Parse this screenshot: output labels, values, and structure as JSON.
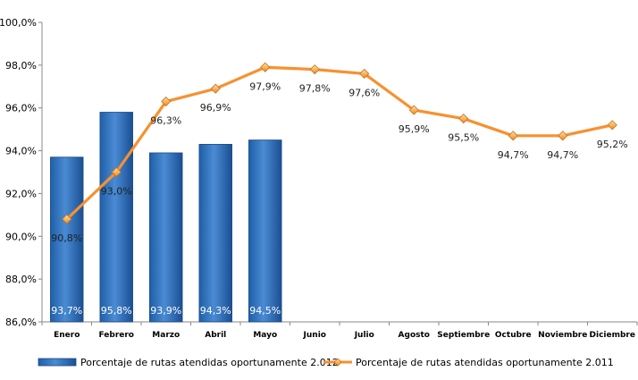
{
  "chart_data": {
    "type": "bar+line",
    "title": "",
    "xlabel": "",
    "ylabel": "",
    "ylim": [
      86.0,
      100.0
    ],
    "ytick_step": 2.0,
    "ytick_labels": [
      "86,0%",
      "88,0%",
      "90,0%",
      "92,0%",
      "94,0%",
      "96,0%",
      "98,0%",
      "100,0%"
    ],
    "categories": [
      "Enero",
      "Febrero",
      "Marzo",
      "Abril",
      "Mayo",
      "Junio",
      "Julio",
      "Agosto",
      "Septiembre",
      "Octubre",
      "Noviembre",
      "Diciembre"
    ],
    "grid": false,
    "legend_position": "bottom",
    "series": [
      {
        "name": "Porcentaje de rutas atendidas oportunamente 2.012",
        "type": "bar",
        "color": "#2e6db8",
        "values": [
          93.7,
          95.8,
          93.9,
          94.3,
          94.5,
          null,
          null,
          null,
          null,
          null,
          null,
          null
        ],
        "labels": [
          "93,7%",
          "95,8%",
          "93,9%",
          "94,3%",
          "94,5%",
          "",
          "",
          "",
          "",
          "",
          "",
          ""
        ]
      },
      {
        "name": "Porcentaje de rutas atendidas oportunamente 2.011",
        "type": "line",
        "color": "#f7912f",
        "values": [
          90.8,
          93.0,
          96.3,
          96.9,
          97.9,
          97.8,
          97.6,
          95.9,
          95.5,
          94.7,
          94.7,
          95.2
        ],
        "labels": [
          "90,8%",
          "93,0%",
          "96,3%",
          "96,9%",
          "97,9%",
          "97,8%",
          "97,6%",
          "95,9%",
          "95,5%",
          "94,7%",
          "94,7%",
          "95,2%"
        ]
      }
    ]
  }
}
